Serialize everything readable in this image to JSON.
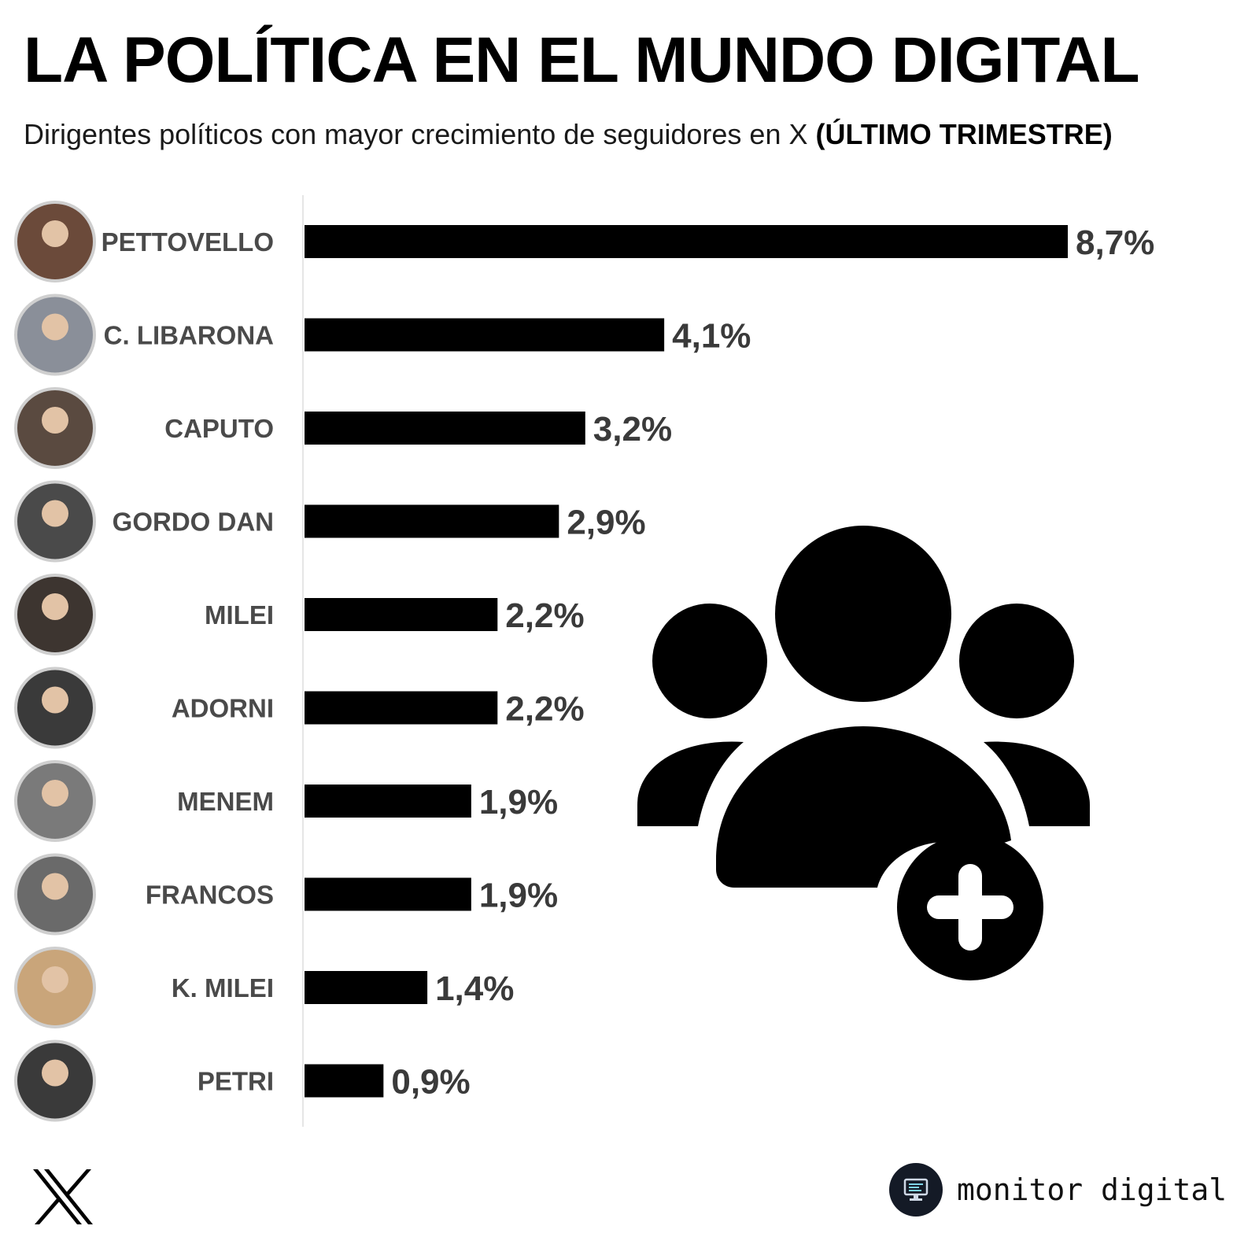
{
  "header": {
    "title": "LA POLÍTICA EN EL MUNDO DIGITAL",
    "subtitle": "Dirigentes políticos con mayor crecimiento de seguidores en X",
    "subtitle_bold": "(ÚLTIMO TRIMESTRE)"
  },
  "chart_data": {
    "type": "bar",
    "orientation": "horizontal",
    "categories": [
      "PETTOVELLO",
      "C. LIBARONA",
      "CAPUTO",
      "GORDO DAN",
      "MILEI",
      "ADORNI",
      "MENEM",
      "FRANCOS",
      "K. MILEI",
      "PETRI"
    ],
    "values": [
      8.7,
      4.1,
      3.2,
      2.9,
      2.2,
      2.2,
      1.9,
      1.9,
      1.4,
      0.9
    ],
    "value_labels": [
      "8,7%",
      "4,1%",
      "3,2%",
      "2,9%",
      "2,2%",
      "2,2%",
      "1,9%",
      "1,9%",
      "1,4%",
      "0,9%"
    ],
    "xlim": [
      0,
      8.7
    ],
    "grid": false,
    "bar_color": "#000000",
    "label_color": "#4a4a4a"
  },
  "icons": {
    "people": "group-add-icon",
    "x_logo": "x-logo-icon",
    "brand": "monitor-icon"
  },
  "footer": {
    "brand_name": "monitor digital"
  }
}
